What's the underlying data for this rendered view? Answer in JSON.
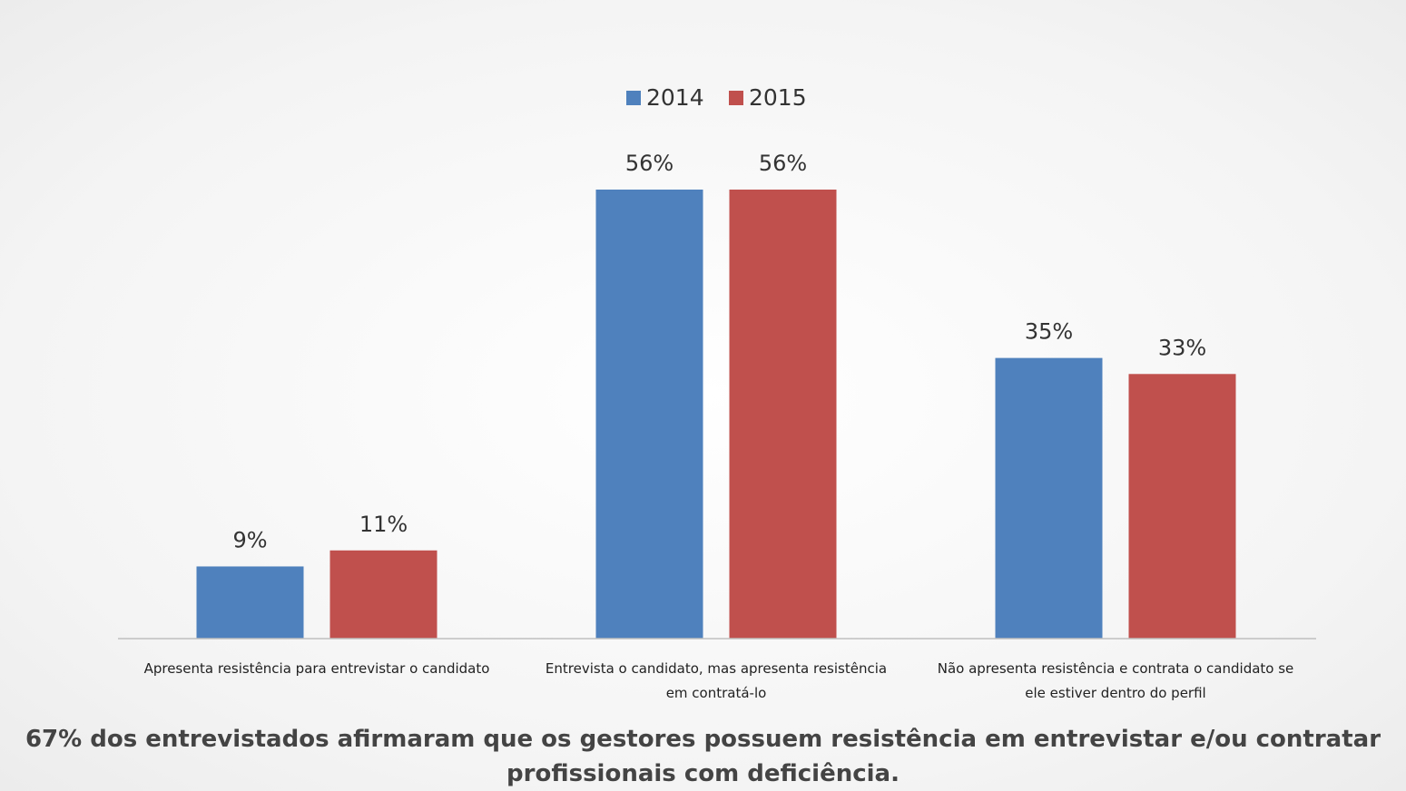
{
  "chart_data": {
    "type": "bar",
    "categories": [
      "Apresenta resistência para entrevistar o candidato",
      "Entrevista o candidato, mas apresenta resistência em contratá-lo",
      "Não apresenta resistência e contrata o candidato se ele estiver dentro do perfil"
    ],
    "series": [
      {
        "name": "2014",
        "color": "#4f81bd",
        "values": [
          9,
          56,
          35
        ],
        "value_labels": [
          "9%",
          "56%",
          "35%"
        ]
      },
      {
        "name": "2015",
        "color": "#c0504d",
        "values": [
          11,
          56,
          33
        ],
        "value_labels": [
          "11%",
          "56%",
          "33%"
        ]
      }
    ],
    "legend": "top",
    "annotation": "67% dos entrevistados afirmaram que os gestores possuem resistência em entrevistar e/ou contratar profissionais com deficiência."
  }
}
